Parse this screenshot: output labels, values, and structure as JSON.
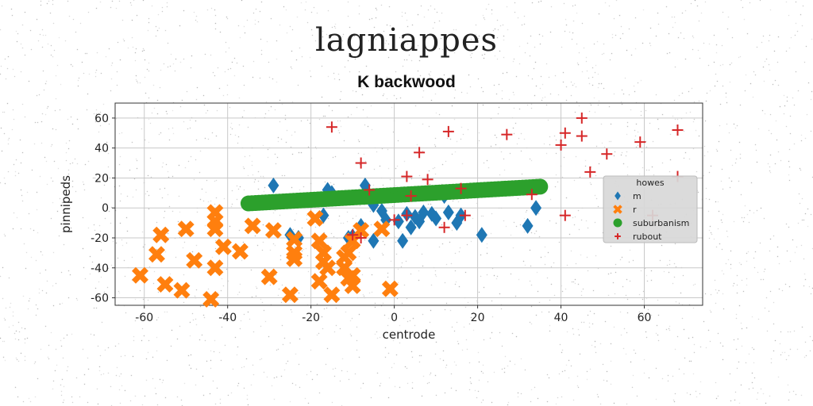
{
  "suptitle": "lagniappes",
  "chart_data": {
    "type": "scatter",
    "title": "K backwood",
    "xlabel": "centrode",
    "ylabel": "pinnipeds",
    "xlim": [
      -67,
      74
    ],
    "ylim": [
      -65,
      70
    ],
    "xticks": [
      -60,
      -40,
      -20,
      0,
      20,
      40,
      60
    ],
    "yticks": [
      -60,
      -40,
      -20,
      0,
      20,
      40,
      60
    ],
    "grid": true,
    "legend": {
      "title": "howes",
      "placement": "center-right"
    },
    "series": [
      {
        "name": "m",
        "marker": "diamond",
        "color": "#1f77b4",
        "points": [
          [
            -29,
            15
          ],
          [
            -25,
            -18
          ],
          [
            -23,
            -20
          ],
          [
            -17,
            -5
          ],
          [
            -16,
            12
          ],
          [
            -15,
            10
          ],
          [
            -11,
            -20
          ],
          [
            -10,
            -19
          ],
          [
            -8,
            -12
          ],
          [
            -7,
            15
          ],
          [
            -5,
            2
          ],
          [
            -5,
            -22
          ],
          [
            -3,
            -2
          ],
          [
            -2,
            -8
          ],
          [
            1,
            -9
          ],
          [
            2,
            -22
          ],
          [
            3,
            -4
          ],
          [
            4,
            -13
          ],
          [
            5,
            -6
          ],
          [
            6,
            -9
          ],
          [
            9,
            -4
          ],
          [
            10,
            -7
          ],
          [
            13,
            -3
          ],
          [
            15,
            -10
          ],
          [
            16,
            -5
          ],
          [
            21,
            -18
          ],
          [
            32,
            -12
          ],
          [
            34,
            0
          ],
          [
            7,
            -3
          ],
          [
            12,
            8
          ]
        ]
      },
      {
        "name": "r",
        "marker": "x",
        "color": "#ff7f0e",
        "points": [
          [
            -61,
            -45
          ],
          [
            -57,
            -31
          ],
          [
            -56,
            -18
          ],
          [
            -55,
            -51
          ],
          [
            -51,
            -55
          ],
          [
            -50,
            -14
          ],
          [
            -48,
            -35
          ],
          [
            -44,
            -61
          ],
          [
            -43,
            -3
          ],
          [
            -43,
            -9
          ],
          [
            -43,
            -14
          ],
          [
            -43,
            -40
          ],
          [
            -41,
            -26
          ],
          [
            -37,
            -29
          ],
          [
            -34,
            -12
          ],
          [
            -30,
            -46
          ],
          [
            -29,
            -15
          ],
          [
            -25,
            -58
          ],
          [
            -24,
            -21
          ],
          [
            -24,
            -30
          ],
          [
            -24,
            -34
          ],
          [
            -19,
            -7
          ],
          [
            -18,
            -49
          ],
          [
            -18,
            -22
          ],
          [
            -17,
            -30
          ],
          [
            -17,
            -36
          ],
          [
            -16,
            -40
          ],
          [
            -15,
            -58
          ],
          [
            -12,
            -40
          ],
          [
            -12,
            -33
          ],
          [
            -11,
            -47
          ],
          [
            -11,
            -30
          ],
          [
            -10,
            -52
          ],
          [
            -10,
            -45
          ],
          [
            -10,
            -22
          ],
          [
            -8,
            -15
          ],
          [
            -3,
            -14
          ],
          [
            -1,
            -54
          ]
        ]
      },
      {
        "name": "suburbanism",
        "marker": "circle",
        "color": "#2ca02c",
        "points": [
          [
            -35,
            3
          ],
          [
            -30,
            3.8
          ],
          [
            -25,
            4.6
          ],
          [
            -20,
            5.4
          ],
          [
            -15,
            6.2
          ],
          [
            -10,
            7
          ],
          [
            -5,
            7.8
          ],
          [
            0,
            8.6
          ],
          [
            5,
            9.4
          ],
          [
            10,
            10.2
          ],
          [
            15,
            11
          ],
          [
            20,
            11.8
          ],
          [
            25,
            12.6
          ],
          [
            30,
            13.4
          ],
          [
            35,
            14.2
          ]
        ]
      },
      {
        "name": "rubout",
        "marker": "plus",
        "color": "#d62728",
        "points": [
          [
            -15,
            54
          ],
          [
            -8,
            30
          ],
          [
            -6,
            12
          ],
          [
            -10,
            -18
          ],
          [
            -8,
            -20
          ],
          [
            0,
            -8
          ],
          [
            3,
            -5
          ],
          [
            3,
            21
          ],
          [
            4,
            8
          ],
          [
            6,
            37
          ],
          [
            8,
            19
          ],
          [
            13,
            51
          ],
          [
            12,
            -13
          ],
          [
            16,
            13
          ],
          [
            17,
            -5
          ],
          [
            27,
            49
          ],
          [
            33,
            9
          ],
          [
            40,
            42
          ],
          [
            41,
            50
          ],
          [
            41,
            -5
          ],
          [
            45,
            60
          ],
          [
            45,
            48
          ],
          [
            47,
            24
          ],
          [
            51,
            36
          ],
          [
            59,
            44
          ],
          [
            62,
            -5
          ],
          [
            68,
            52
          ],
          [
            68,
            21
          ]
        ]
      }
    ]
  }
}
